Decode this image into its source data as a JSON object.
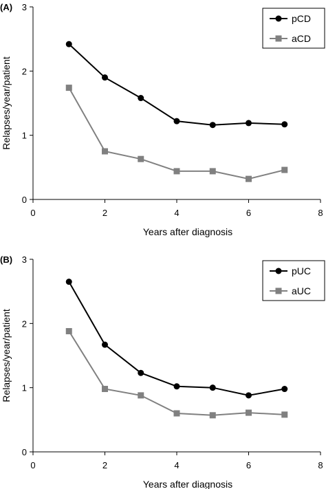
{
  "chart_data": [
    {
      "type": "line",
      "panel_label": "(A)",
      "xlabel": "Years after diagnosis",
      "ylabel": "Relapses/year/patient",
      "xlim": [
        0,
        8
      ],
      "ylim": [
        0,
        3
      ],
      "xticks": [
        "0",
        "2",
        "4",
        "6",
        "8"
      ],
      "yticks": [
        "0",
        "1",
        "2",
        "3"
      ],
      "grid": false,
      "legend_position": "top-right",
      "x": [
        1,
        2,
        3,
        4,
        5,
        6,
        7
      ],
      "series": [
        {
          "name": "pCD",
          "marker": "circle",
          "color": "#000000",
          "values": [
            2.42,
            1.9,
            1.58,
            1.22,
            1.16,
            1.19,
            1.17
          ]
        },
        {
          "name": "aCD",
          "marker": "square",
          "color": "#808080",
          "values": [
            1.74,
            0.75,
            0.63,
            0.44,
            0.44,
            0.32,
            0.46
          ]
        }
      ]
    },
    {
      "type": "line",
      "panel_label": "(B)",
      "xlabel": "Years after diagnosis",
      "ylabel": "Relapses/year/patient",
      "xlim": [
        0,
        8
      ],
      "ylim": [
        0,
        3
      ],
      "xticks": [
        "0",
        "2",
        "4",
        "6",
        "8"
      ],
      "yticks": [
        "0",
        "1",
        "2",
        "3"
      ],
      "grid": false,
      "legend_position": "top-right",
      "x": [
        1,
        2,
        3,
        4,
        5,
        6,
        7
      ],
      "series": [
        {
          "name": "pUC",
          "marker": "circle",
          "color": "#000000",
          "values": [
            2.65,
            1.67,
            1.23,
            1.02,
            1.0,
            0.88,
            0.98
          ]
        },
        {
          "name": "aUC",
          "marker": "square",
          "color": "#808080",
          "values": [
            1.88,
            0.98,
            0.88,
            0.6,
            0.57,
            0.61,
            0.58
          ]
        }
      ]
    }
  ]
}
